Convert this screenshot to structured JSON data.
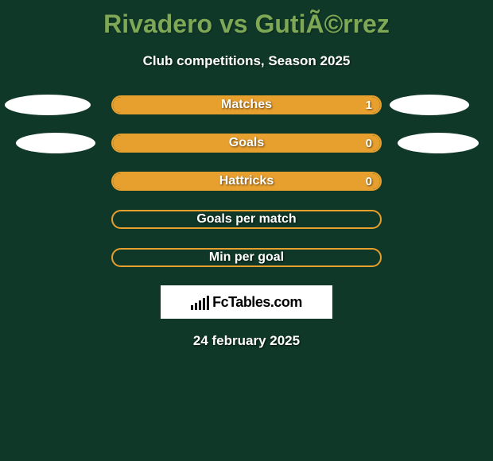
{
  "title": "Rivadero vs GutiÃ©rrez",
  "subtitle": "Club competitions, Season 2025",
  "date": "24 february 2025",
  "logo": {
    "text": "FcTables.com"
  },
  "colors": {
    "background": "#103828",
    "accent": "#e79f2e",
    "title": "#7ea856",
    "text": "#ffffff",
    "ellipse": "#ffffff",
    "logo_bg": "#ffffff",
    "logo_text": "#000000"
  },
  "stats": [
    {
      "label": "Matches",
      "value": "1",
      "fill_percent": 100,
      "show_value": true
    },
    {
      "label": "Goals",
      "value": "0",
      "fill_percent": 100,
      "show_value": true
    },
    {
      "label": "Hattricks",
      "value": "0",
      "fill_percent": 100,
      "show_value": true
    },
    {
      "label": "Goals per match",
      "value": "",
      "fill_percent": 0,
      "show_value": false
    },
    {
      "label": "Min per goal",
      "value": "",
      "fill_percent": 0,
      "show_value": false
    }
  ]
}
